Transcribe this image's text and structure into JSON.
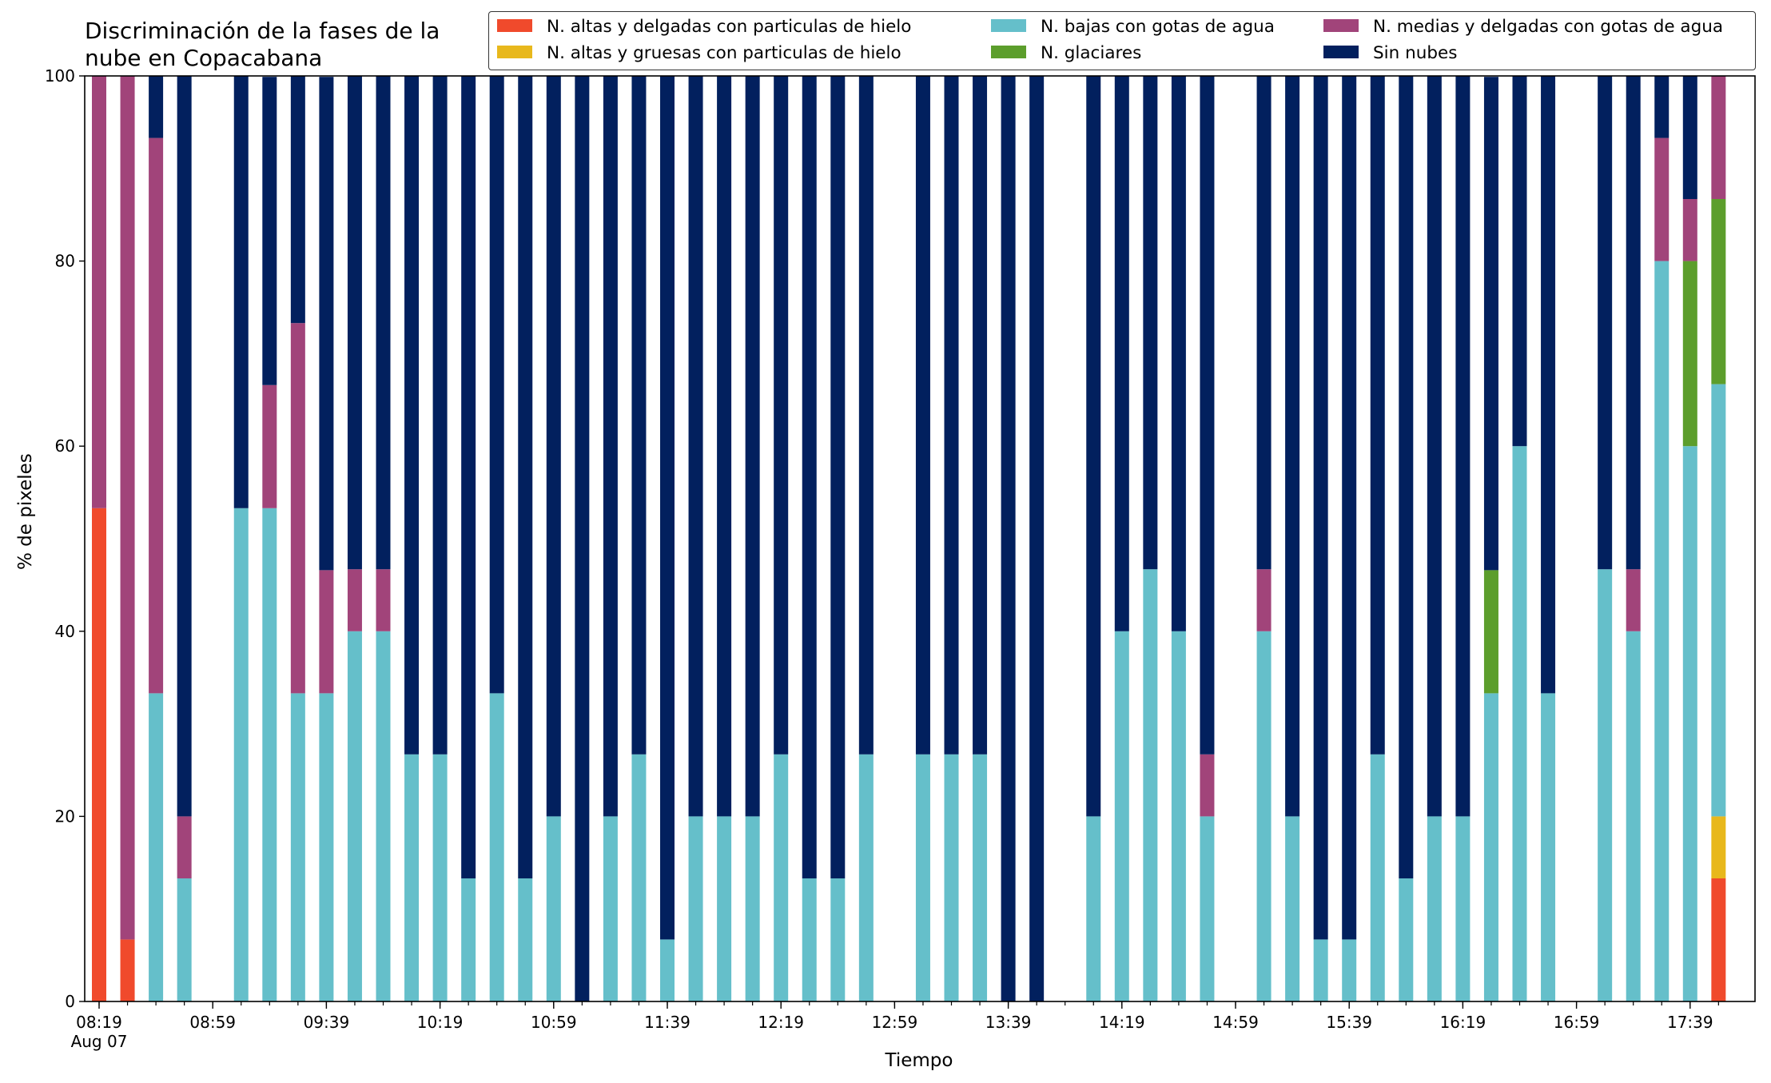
{
  "chart_data": {
    "type": "bar",
    "stacked": true,
    "title": "Discriminación de la fases de la\nnube en Copacabana",
    "xlabel": "Tiempo",
    "ylabel": "% de pixeles",
    "ylim": [
      0,
      100
    ],
    "yticks": [
      0,
      20,
      40,
      60,
      80,
      100
    ],
    "grid": false,
    "legend_position": "top-right",
    "xtick_labels": [
      "08:19\nAug 07",
      "08:59",
      "09:39",
      "10:19",
      "10:59",
      "11:39",
      "12:19",
      "12:59",
      "13:39",
      "14:19",
      "14:59",
      "15:39",
      "16:19",
      "16:59",
      "17:39"
    ],
    "categories": [
      "08:19",
      "08:29",
      "08:39",
      "08:49",
      "08:59",
      "09:09",
      "09:19",
      "09:29",
      "09:39",
      "09:49",
      "09:59",
      "10:09",
      "10:19",
      "10:29",
      "10:39",
      "10:49",
      "10:59",
      "11:09",
      "11:19",
      "11:29",
      "11:39",
      "11:49",
      "11:59",
      "12:09",
      "12:19",
      "12:29",
      "12:39",
      "12:49",
      "12:59",
      "13:09",
      "13:19",
      "13:29",
      "13:39",
      "13:49",
      "13:59",
      "14:09",
      "14:19",
      "14:29",
      "14:39",
      "14:49",
      "14:59",
      "15:09",
      "15:19",
      "15:29",
      "15:39",
      "15:49",
      "15:59",
      "16:09",
      "16:19",
      "16:29",
      "16:39",
      "16:49",
      "16:59",
      "17:09",
      "17:19",
      "17:29",
      "17:39",
      "17:49"
    ],
    "series": [
      {
        "name": "N. altas y delgadas con particulas de hielo",
        "color": "#f04a2c",
        "values": [
          53.3,
          6.7,
          0,
          0,
          null,
          0,
          0,
          0,
          0,
          0,
          0,
          0,
          0,
          0,
          0,
          0,
          0,
          0,
          0,
          0,
          0,
          0,
          0,
          0,
          0,
          0,
          0,
          0,
          null,
          0,
          0,
          0,
          0,
          0,
          null,
          0,
          0,
          0,
          0,
          0,
          null,
          0,
          0,
          0,
          0,
          0,
          0,
          0,
          0,
          0,
          0,
          0,
          null,
          0,
          0,
          0,
          0,
          13.3
        ]
      },
      {
        "name": "N. altas y gruesas con particulas de hielo",
        "color": "#e8b81c",
        "values": [
          0,
          0,
          0,
          0,
          null,
          0,
          0,
          0,
          0,
          0,
          0,
          0,
          0,
          0,
          0,
          0,
          0,
          0,
          0,
          0,
          0,
          0,
          0,
          0,
          0,
          0,
          0,
          0,
          null,
          0,
          0,
          0,
          0,
          0,
          null,
          0,
          0,
          0,
          0,
          0,
          null,
          0,
          0,
          0,
          0,
          0,
          0,
          0,
          0,
          0,
          0,
          0,
          null,
          0,
          0,
          0,
          0,
          6.7
        ]
      },
      {
        "name": "N. bajas con gotas de agua",
        "color": "#65bfca",
        "values": [
          0,
          0,
          33.3,
          13.3,
          null,
          53.3,
          53.3,
          33.3,
          33.3,
          40,
          40,
          26.7,
          26.7,
          13.3,
          33.3,
          13.3,
          20,
          0,
          20,
          26.7,
          6.7,
          20,
          20,
          20,
          26.7,
          13.3,
          13.3,
          26.7,
          null,
          26.7,
          26.7,
          26.7,
          0,
          0,
          null,
          20,
          40,
          46.7,
          40,
          20,
          null,
          40,
          20,
          6.7,
          6.7,
          26.7,
          13.3,
          20,
          20,
          33.3,
          60,
          33.3,
          null,
          46.7,
          40,
          80,
          60,
          46.7
        ]
      },
      {
        "name": "N. glaciares",
        "color": "#5c9e2c",
        "values": [
          0,
          0,
          0,
          0,
          null,
          0,
          0,
          0,
          0,
          0,
          0,
          0,
          0,
          0,
          0,
          0,
          0,
          0,
          0,
          0,
          0,
          0,
          0,
          0,
          0,
          0,
          0,
          0,
          null,
          0,
          0,
          0,
          0,
          0,
          null,
          0,
          0,
          0,
          0,
          0,
          null,
          0,
          0,
          0,
          0,
          0,
          0,
          0,
          0,
          13.3,
          0,
          0,
          null,
          0,
          0,
          0,
          20,
          20
        ]
      },
      {
        "name": "N. medias y delgadas con gotas de agua",
        "color": "#a1447a",
        "values": [
          46.7,
          93.3,
          60,
          6.7,
          null,
          0,
          13.3,
          40,
          13.3,
          6.7,
          6.7,
          0,
          0,
          0,
          0,
          0,
          0,
          0,
          0,
          0,
          0,
          0,
          0,
          0,
          0,
          0,
          0,
          0,
          null,
          0,
          0,
          0,
          0,
          0,
          null,
          0,
          0,
          0,
          0,
          6.7,
          null,
          6.7,
          0,
          0,
          0,
          0,
          0,
          0,
          0,
          0,
          0,
          0,
          null,
          0,
          6.7,
          13.3,
          6.7,
          13.3
        ]
      },
      {
        "name": "Sin nubes",
        "color": "#02205e",
        "values": [
          0,
          0,
          6.7,
          80,
          null,
          46.7,
          33.3,
          26.7,
          53.3,
          53.3,
          53.3,
          73.3,
          73.3,
          86.7,
          66.7,
          86.7,
          80,
          100,
          80,
          73.3,
          93.3,
          80,
          80,
          80,
          73.3,
          86.7,
          86.7,
          73.3,
          null,
          73.3,
          73.3,
          73.3,
          100,
          100,
          null,
          80,
          60,
          53.3,
          60,
          73.3,
          null,
          53.3,
          80,
          93.3,
          93.3,
          73.3,
          86.7,
          80,
          80,
          53.3,
          40,
          66.7,
          null,
          53.3,
          53.3,
          6.7,
          13.3,
          0
        ]
      }
    ]
  }
}
